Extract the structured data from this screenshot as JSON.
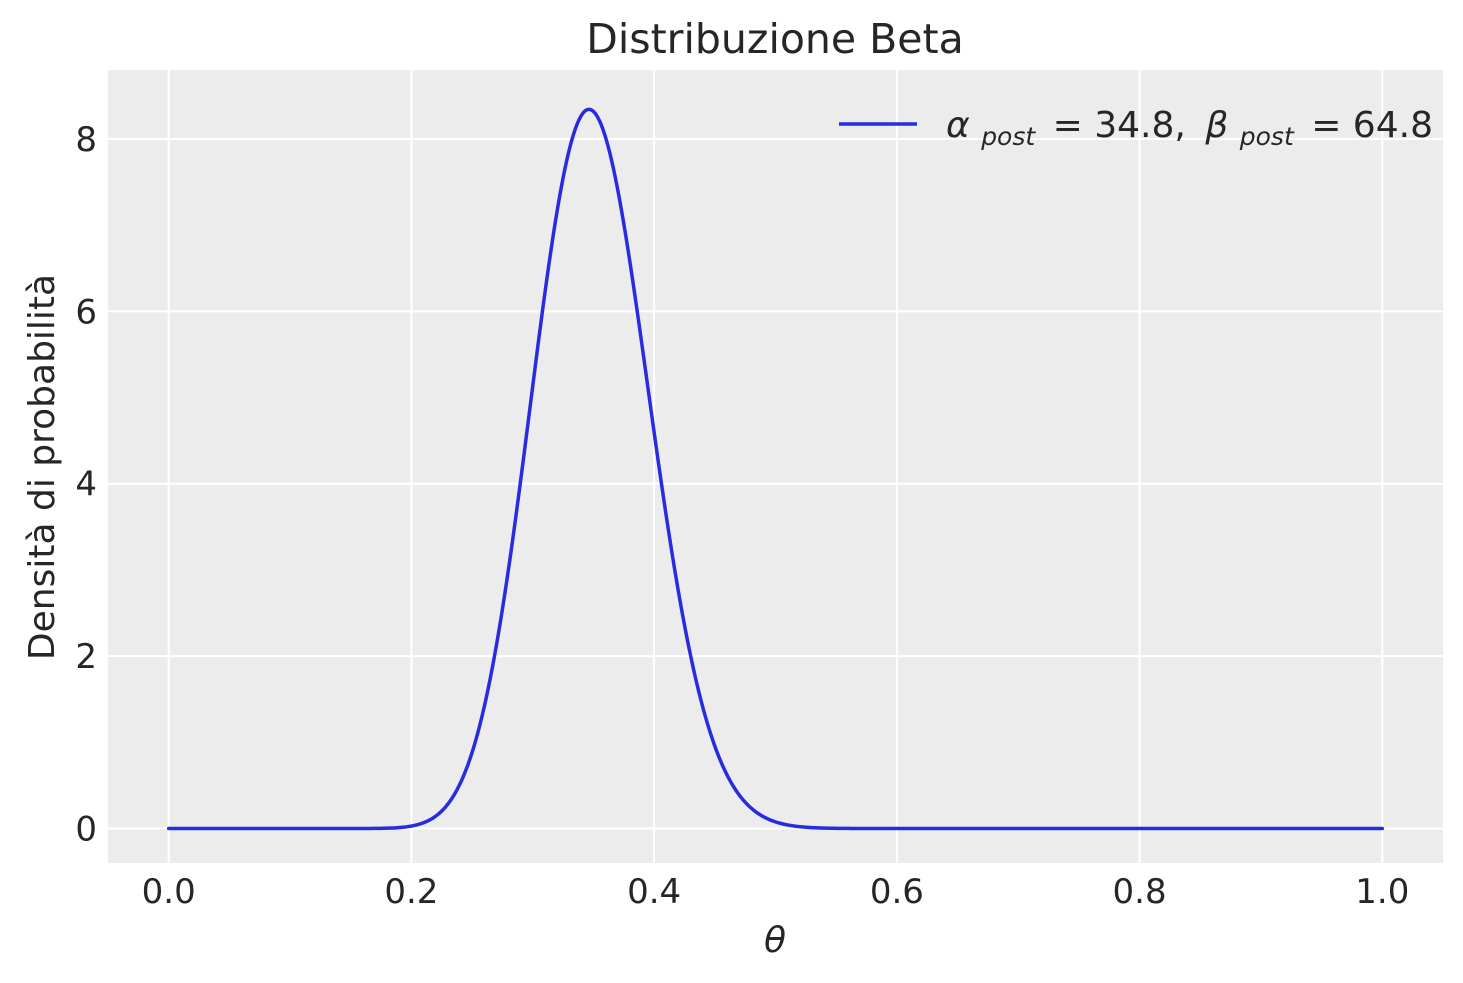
{
  "chart_data": {
    "type": "line",
    "title": "Distribuzione Beta",
    "xlabel": "θ",
    "ylabel": "Densità di probabilità",
    "xlim": [
      -0.05,
      1.05
    ],
    "ylim": [
      -0.4,
      8.8
    ],
    "xticks": [
      0.0,
      0.2,
      0.4,
      0.6,
      0.8,
      1.0
    ],
    "xtick_labels": [
      "0.0",
      "0.2",
      "0.4",
      "0.6",
      "0.8",
      "1.0"
    ],
    "yticks": [
      0,
      2,
      4,
      6,
      8
    ],
    "ytick_labels": [
      "0",
      "2",
      "4",
      "6",
      "8"
    ],
    "grid": true,
    "background": "#ececec",
    "grid_color": "#ffffff",
    "legend_position": "top-right",
    "series": [
      {
        "name": "α_post = 34.8, β_post = 64.8",
        "legend": {
          "alpha_symbol": "α",
          "alpha_sub": "post",
          "alpha_value": "= 34.8,",
          "beta_symbol": "β",
          "beta_sub": "post",
          "beta_value": "= 64.8"
        },
        "color": "#2a2ae0",
        "distribution": "beta",
        "alpha": 34.8,
        "beta": 64.8,
        "x_range": [
          0.0,
          1.0
        ],
        "peak": {
          "x": 0.346,
          "y": 8.34
        },
        "x": [
          0.0,
          0.1,
          0.15,
          0.18,
          0.2,
          0.22,
          0.24,
          0.26,
          0.28,
          0.3,
          0.32,
          0.34,
          0.346,
          0.36,
          0.38,
          0.4,
          0.42,
          0.44,
          0.46,
          0.48,
          0.5,
          0.52,
          0.55,
          0.6,
          0.7,
          0.8,
          1.0
        ],
        "y": [
          0.0,
          0.0,
          0.0,
          0.01,
          0.05,
          0.25,
          0.85,
          2.05,
          3.8,
          5.75,
          7.4,
          8.3,
          8.34,
          8.1,
          7.0,
          5.35,
          3.6,
          2.15,
          1.1,
          0.5,
          0.2,
          0.07,
          0.01,
          0.0,
          0.0,
          0.0,
          0.0
        ]
      }
    ]
  }
}
